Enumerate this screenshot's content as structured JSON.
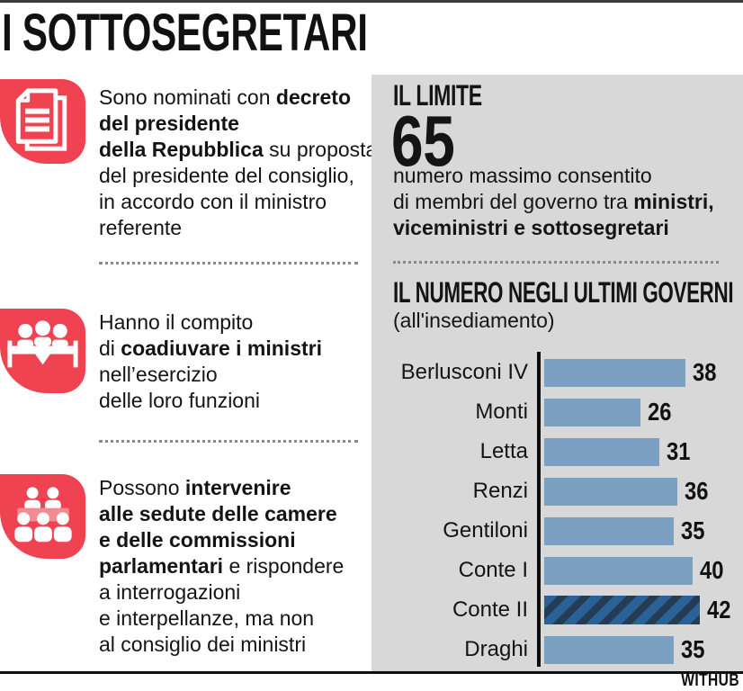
{
  "header": {
    "title": "I SOTTOSEGRETARI"
  },
  "colors": {
    "accent_red": "#ef4351",
    "bench_light_red": "#f48a94",
    "panel_gray": "#d8d8d8",
    "bar_blue": "#7ba0c2",
    "highlight_blue": "#2a6298",
    "highlight_stripe": "#263c55",
    "text_black": "#141414"
  },
  "facts": [
    {
      "icon": "documents-icon",
      "lines": [
        [
          {
            "t": "Sono nominati con ",
            "b": false
          },
          {
            "t": "decreto",
            "b": true
          }
        ],
        [
          {
            "t": "del presidente",
            "b": true
          }
        ],
        [
          {
            "t": "della Repubblica",
            "b": true
          },
          {
            "t": " su proposta",
            "b": false
          }
        ],
        [
          {
            "t": "del presidente del consiglio,",
            "b": false
          }
        ],
        [
          {
            "t": "in accordo con il ministro",
            "b": false
          }
        ],
        [
          {
            "t": "referente",
            "b": false
          }
        ]
      ]
    },
    {
      "icon": "meeting-table-icon",
      "lines": [
        [
          {
            "t": "Hanno il compito",
            "b": false
          }
        ],
        [
          {
            "t": "di ",
            "b": false
          },
          {
            "t": "coadiuvare i ministri",
            "b": true
          }
        ],
        [
          {
            "t": "nell’esercizio",
            "b": false
          }
        ],
        [
          {
            "t": "delle loro funzioni",
            "b": false
          }
        ]
      ]
    },
    {
      "icon": "assembly-icon",
      "lines": [
        [
          {
            "t": "Possono ",
            "b": false
          },
          {
            "t": "intervenire",
            "b": true
          }
        ],
        [
          {
            "t": "alle sedute delle camere",
            "b": true
          }
        ],
        [
          {
            "t": "e delle commissioni",
            "b": true
          }
        ],
        [
          {
            "t": "parlamentari",
            "b": true
          },
          {
            "t": " e rispondere",
            "b": false
          }
        ],
        [
          {
            "t": "a interrogazioni",
            "b": false
          }
        ],
        [
          {
            "t": "e interpellanze, ma non",
            "b": false
          }
        ],
        [
          {
            "t": "al consiglio dei ministri",
            "b": false
          }
        ]
      ]
    }
  ],
  "limit": {
    "heading": "IL LIMITE",
    "value": "65",
    "description_lines": [
      [
        {
          "t": "numero massimo consentito",
          "b": false
        }
      ],
      [
        {
          "t": "di membri del governo tra ",
          "b": false
        },
        {
          "t": "ministri,",
          "b": true
        }
      ],
      [
        {
          "t": "viceministri e sottosegretari",
          "b": true
        }
      ]
    ]
  },
  "chart_data": {
    "type": "bar",
    "orientation": "horizontal",
    "title": "IL NUMERO NEGLI ULTIMI GOVERNI",
    "subtitle": "(all'insediamento)",
    "categories": [
      "Berlusconi IV",
      "Monti",
      "Letta",
      "Renzi",
      "Gentiloni",
      "Conte I",
      "Conte II",
      "Draghi"
    ],
    "values": [
      38,
      26,
      31,
      36,
      35,
      40,
      42,
      35
    ],
    "highlighted_category": "Conte II",
    "xlim": [
      0,
      45
    ],
    "grid": false,
    "value_labels": "end-of-bar"
  },
  "footer": {
    "brand": "WITHUB"
  }
}
